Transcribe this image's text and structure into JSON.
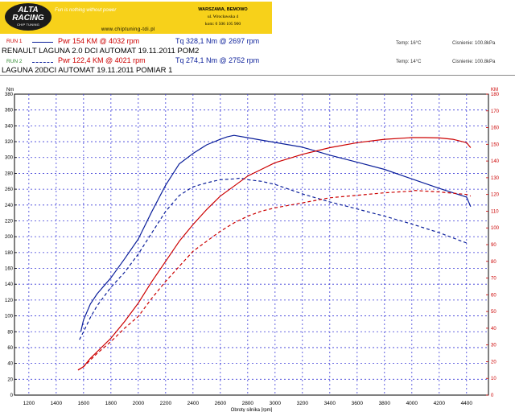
{
  "header": {
    "logo": {
      "line1": "ALTA",
      "line2": "RACING",
      "line3": "CHIP TUNING"
    },
    "slogan": "Fun is nothing without power",
    "website": "www.chiptuning-tdi.pl",
    "address": [
      "WARSZAWA, BEMOWO",
      "ul. Wrocławska 4",
      "kom: 0 506 105 900"
    ]
  },
  "runs": [
    {
      "tag": "RUN 1",
      "tag_color": "#cc0000",
      "power_text": "Pwr 154 KM @ 4032 rpm",
      "torque_text": "Tq 328,1 Nm @ 2697 rpm",
      "description": "RENAULT LAGUNA 2.0 DCI AUTOMAT 19.11.2011  POM2",
      "temp": "Temp: 16°C",
      "pressure": "Cisnienie: 100.8kPa"
    },
    {
      "tag": "RUN 2",
      "tag_color": "#2f8a2f",
      "power_text": "Pwr 122,4 KM @ 4021 rpm",
      "torque_text": "Tq 274,1 Nm @ 2752 rpm",
      "description": "LAGUNA 20DCI  AUTOMAT  19.11.2011  POMIAR 1",
      "temp": "Temp: 14°C",
      "pressure": "Cisnienie: 100.8kPa"
    }
  ],
  "colors": {
    "power": "#cc0000",
    "torque": "#0b1f9a",
    "grid": "#3a3ad8",
    "banner": "#f7d11a"
  },
  "chart_data": {
    "type": "line",
    "xlabel": "Obroty silnika [rpm]",
    "ylabel_left": "Nm",
    "ylabel_right": "KM",
    "x_ticks": [
      1200,
      1400,
      1600,
      1800,
      2000,
      2200,
      2400,
      2600,
      2800,
      3000,
      3200,
      3400,
      3600,
      3800,
      4000,
      4200,
      4400
    ],
    "y_left_range": [
      0,
      380
    ],
    "y_left_step": 20,
    "y_right_range": [
      0,
      180
    ],
    "y_right_step": 10,
    "series": [
      {
        "axis": "left",
        "style": "solid",
        "color": "#0b1f9a",
        "x": [
          1580,
          1600,
          1650,
          1700,
          1800,
          1900,
          2000,
          2100,
          2200,
          2300,
          2400,
          2500,
          2600,
          2650,
          2700,
          2800,
          2900,
          3000,
          3200,
          3400,
          3600,
          3800,
          4000,
          4200,
          4400,
          4430
        ],
        "y": [
          80,
          95,
          115,
          128,
          148,
          172,
          197,
          232,
          265,
          292,
          305,
          316,
          323,
          326,
          328,
          325,
          322,
          319,
          313,
          303,
          294,
          285,
          273,
          261,
          250,
          238
        ]
      },
      {
        "axis": "left",
        "style": "dashed",
        "color": "#0b1f9a",
        "x": [
          1570,
          1600,
          1650,
          1700,
          1800,
          1900,
          2000,
          2100,
          2200,
          2300,
          2400,
          2500,
          2600,
          2700,
          2750,
          2800,
          2900,
          3000,
          3200,
          3400,
          3600,
          3800,
          4000,
          4200,
          4400
        ],
        "y": [
          70,
          80,
          98,
          113,
          136,
          155,
          178,
          205,
          232,
          252,
          263,
          268,
          272,
          273,
          274,
          272,
          270,
          266,
          254,
          244,
          235,
          226,
          216,
          205,
          192
        ]
      },
      {
        "axis": "right",
        "style": "solid",
        "color": "#cc0000",
        "x": [
          1560,
          1600,
          1650,
          1700,
          1800,
          1900,
          2000,
          2100,
          2200,
          2300,
          2400,
          2500,
          2600,
          2700,
          2800,
          2900,
          3000,
          3200,
          3400,
          3600,
          3800,
          4000,
          4100,
          4200,
          4300,
          4400,
          4430
        ],
        "y": [
          15,
          17,
          22,
          26,
          34,
          44,
          55,
          68,
          80,
          92,
          102,
          111,
          119,
          125,
          131,
          135,
          139,
          144,
          148,
          151,
          153,
          154,
          154,
          153.8,
          153,
          151,
          148
        ]
      },
      {
        "axis": "right",
        "style": "dashed",
        "color": "#cc0000",
        "x": [
          1560,
          1600,
          1650,
          1700,
          1800,
          1900,
          2000,
          2100,
          2200,
          2300,
          2400,
          2500,
          2600,
          2700,
          2800,
          2900,
          3000,
          3200,
          3400,
          3600,
          3800,
          4000,
          4021,
          4200,
          4400,
          4430
        ],
        "y": [
          15,
          17,
          21,
          25,
          32,
          40,
          47,
          58,
          68,
          77,
          86,
          92,
          98,
          103,
          107,
          110,
          112,
          115,
          118,
          119.5,
          121,
          122,
          122.4,
          121.5,
          120,
          119
        ]
      }
    ]
  }
}
